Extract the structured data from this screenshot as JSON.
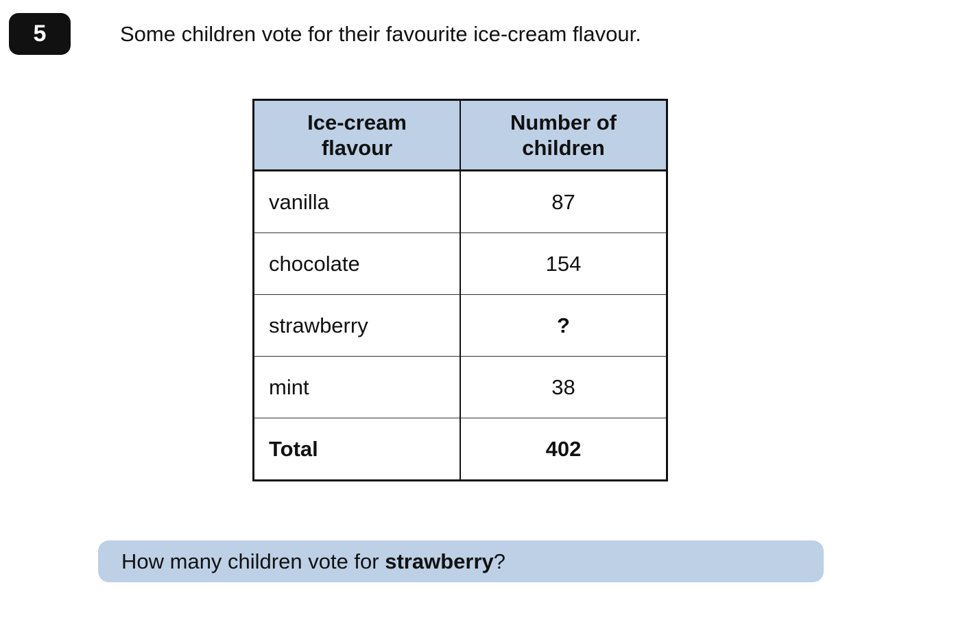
{
  "question_number": "5",
  "intro_text": "Some children vote for their favourite ice-cream flavour.",
  "table": {
    "headers": [
      {
        "line1": "Ice-cream",
        "line2": "flavour"
      },
      {
        "line1": "Number of",
        "line2": "children"
      }
    ],
    "rows": [
      {
        "flavour": "vanilla",
        "count": "87"
      },
      {
        "flavour": "chocolate",
        "count": "154"
      },
      {
        "flavour": "strawberry",
        "count": "?"
      },
      {
        "flavour": "mint",
        "count": "38"
      }
    ],
    "total": {
      "label": "Total",
      "count": "402"
    }
  },
  "question": {
    "prefix": "How many children vote for ",
    "emphasis": "strawberry",
    "suffix": "?"
  },
  "colors": {
    "header_fill": "#bdd0e6",
    "question_fill": "#bdd0e6",
    "badge_fill": "#111111"
  }
}
